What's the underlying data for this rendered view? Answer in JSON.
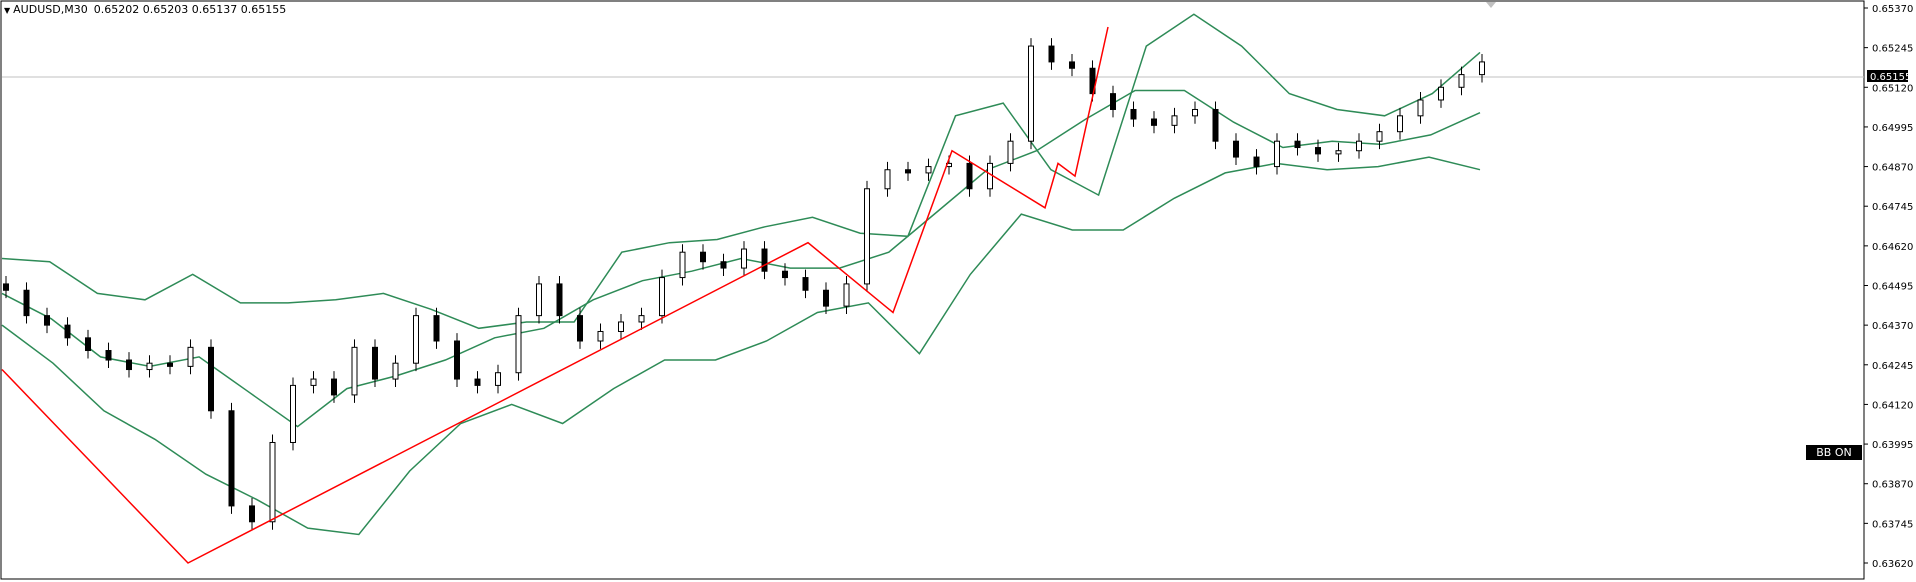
{
  "header": {
    "symbol": "AUDUSD,M30",
    "open": "0.65202",
    "high": "0.65203",
    "low": "0.65137",
    "close": "0.65155"
  },
  "badge": {
    "label": "BB ON"
  },
  "colors": {
    "background": "#ffffff",
    "candle": "#000000",
    "bollinger": "#2e8b57",
    "zigzag": "#ff0000",
    "price_line": "#c0c0c0"
  },
  "chart_data": {
    "type": "candlestick",
    "symbol": "AUDUSD",
    "timeframe": "M30",
    "y_axis_ticks": [
      "0.65370",
      "0.65245",
      "0.65120",
      "0.64995",
      "0.64870",
      "0.64745",
      "0.64620",
      "0.64495",
      "0.64370",
      "0.64245",
      "0.64120",
      "0.63995",
      "0.63870",
      "0.63745",
      "0.63620"
    ],
    "ylim": [
      0.6362,
      0.6537
    ],
    "current_price": "0.65155",
    "zigzag": [
      0.6423,
      0.6362,
      0.6463,
      0.6441,
      0.6492,
      0.6474,
      0.6488,
      0.6484,
      0.6531
    ],
    "bollinger_upper": [
      0.6458,
      0.6457,
      0.6447,
      0.6445,
      0.6453,
      0.6444,
      0.6444,
      0.6445,
      0.6447,
      0.6442,
      0.6436,
      0.6438,
      0.6438,
      0.646,
      0.6463,
      0.6464,
      0.6468,
      0.6471,
      0.6466,
      0.6465,
      0.6503,
      0.6507,
      0.6486,
      0.6478,
      0.6525,
      0.6535,
      0.6525,
      0.651,
      0.6505,
      0.6503,
      0.651,
      0.6523
    ],
    "bollinger_middle": [
      0.6447,
      0.6439,
      0.6427,
      0.6424,
      0.6427,
      0.6416,
      0.6405,
      0.6417,
      0.6421,
      0.6426,
      0.6433,
      0.6436,
      0.6445,
      0.6451,
      0.6454,
      0.6458,
      0.6455,
      0.6455,
      0.646,
      0.6473,
      0.6486,
      0.6492,
      0.6502,
      0.6511,
      0.6511,
      0.6501,
      0.6493,
      0.6495,
      0.6494,
      0.6497,
      0.6504
    ],
    "bollinger_lower": [
      0.6437,
      0.6425,
      0.641,
      0.6401,
      0.639,
      0.6382,
      0.6373,
      0.6371,
      0.6391,
      0.6406,
      0.6412,
      0.6406,
      0.6417,
      0.6426,
      0.6426,
      0.6432,
      0.6441,
      0.6444,
      0.6428,
      0.6453,
      0.6472,
      0.6467,
      0.6467,
      0.6477,
      0.6485,
      0.6488,
      0.6486,
      0.6487,
      0.649,
      0.6486
    ],
    "candles_close": [
      0.6448,
      0.644,
      0.6437,
      0.6433,
      0.6429,
      0.6426,
      0.6423,
      0.6425,
      0.6424,
      0.643,
      0.641,
      0.638,
      0.6375,
      0.64,
      0.6418,
      0.642,
      0.6415,
      0.643,
      0.642,
      0.6425,
      0.644,
      0.6432,
      0.642,
      0.6418,
      0.6422,
      0.644,
      0.645,
      0.644,
      0.6432,
      0.6435,
      0.6438,
      0.644,
      0.6452,
      0.646,
      0.6457,
      0.6455,
      0.6461,
      0.6454,
      0.6452,
      0.6448,
      0.6443,
      0.645,
      0.648,
      0.6486,
      0.6485,
      0.6487,
      0.6488,
      0.648,
      0.6488,
      0.6495,
      0.6525,
      0.652,
      0.6518,
      0.651,
      0.6505,
      0.6502,
      0.65,
      0.6503,
      0.6505,
      0.6495,
      0.649,
      0.6487,
      0.6495,
      0.6493,
      0.6491,
      0.6492,
      0.6495,
      0.6498,
      0.6503,
      0.6508,
      0.6512,
      0.6516,
      0.652
    ]
  }
}
